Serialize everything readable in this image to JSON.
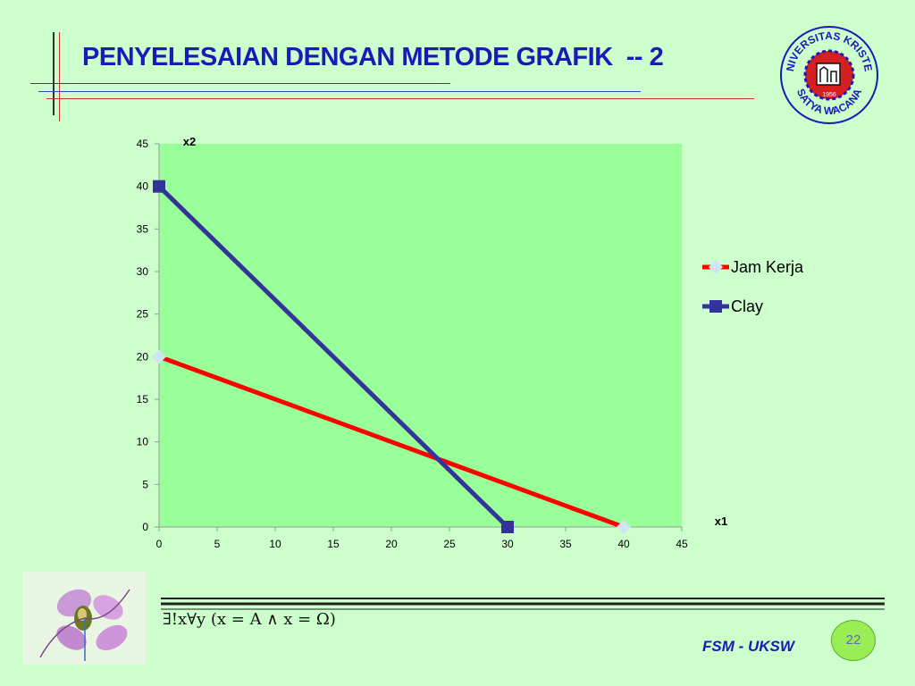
{
  "slide": {
    "title": "PENYELESAIAN DENGAN METODE GRAFIK  -- 2",
    "formula": "∃!x∀y (x = A ∧ x = Ω)",
    "footer_text": "FSM - UKSW",
    "page_number": "22",
    "logo_text": "UNIVERSITAS KRISTEN SATYA WACANA",
    "logo_year": "1956"
  },
  "colors": {
    "background": "#ccffcc",
    "plot_area": "#99ff99",
    "title": "#1a1ab8",
    "jam_kerja": "#ff0000",
    "clay": "#333399",
    "jam_kerja_marker": "#cce5f0",
    "logo": "#1a1ab8",
    "logo_center": "#d42020"
  },
  "chart_data": {
    "type": "line",
    "xlabel": "x1",
    "ylabel": "x2",
    "xlim": [
      0,
      45
    ],
    "ylim": [
      0,
      45
    ],
    "xticks": [
      0,
      5,
      10,
      15,
      20,
      25,
      30,
      35,
      40,
      45
    ],
    "yticks": [
      0,
      5,
      10,
      15,
      20,
      25,
      30,
      35,
      40,
      45
    ],
    "grid": false,
    "legend_position": "right",
    "series": [
      {
        "name": "Jam Kerja",
        "marker": "diamond",
        "points": [
          [
            0,
            20
          ],
          [
            40,
            0
          ]
        ]
      },
      {
        "name": "Clay",
        "marker": "square",
        "points": [
          [
            0,
            40
          ],
          [
            30,
            0
          ]
        ]
      }
    ]
  }
}
